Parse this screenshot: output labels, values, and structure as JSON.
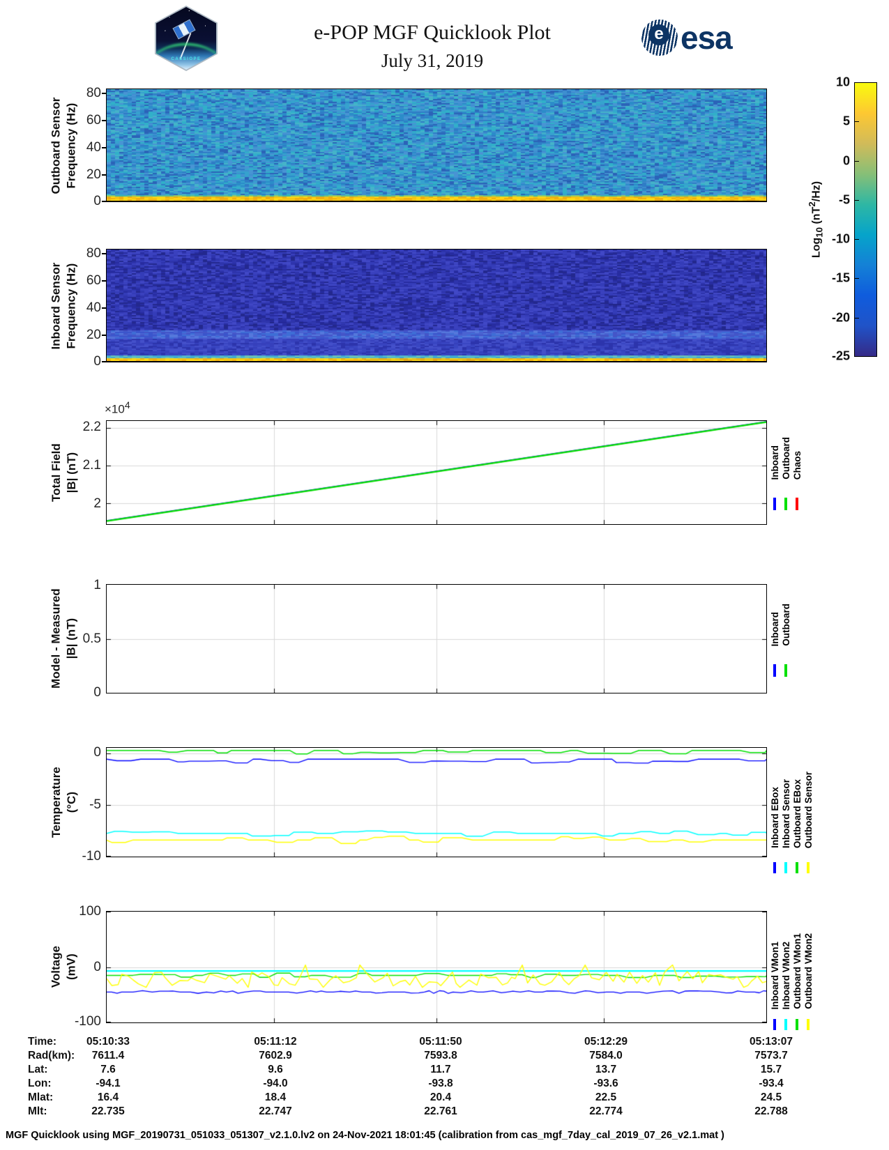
{
  "header": {
    "title": "e-POP MGF Quicklook Plot",
    "date": "July 31, 2019",
    "esa_wordmark": "esa",
    "cassiope_patch_text": "CASSIOPE"
  },
  "colorbar": {
    "ticks": [
      "10",
      "5",
      "0",
      "-5",
      "-10",
      "-15",
      "-20",
      "-25"
    ],
    "label_base": "Log",
    "label_sub": "10",
    "label_mid": " (nT",
    "label_sup": "2",
    "label_end": "/Hz)",
    "stops": [
      "#352a87",
      "#2053c8",
      "#0f5cdd",
      "#1481d6",
      "#06a4ca",
      "#2eb7a4",
      "#87bf77",
      "#d1bb59",
      "#fdc832",
      "#f9fb0e"
    ]
  },
  "panels": [
    {
      "name": "outboard-spectrogram",
      "ylabel1": "Outboard Sensor",
      "ylabel2": "Frequency (Hz)",
      "yticks": [
        "80",
        "60",
        "40",
        "20",
        "0"
      ]
    },
    {
      "name": "inboard-spectrogram",
      "ylabel1": "Inboard Sensor",
      "ylabel2": "Frequency (Hz)",
      "yticks": [
        "80",
        "60",
        "40",
        "20",
        "0"
      ]
    },
    {
      "name": "total-field",
      "ylabel1": "Total Field",
      "ylabel2": "|B| (nT)",
      "yticks": [
        "2.2",
        "2.1",
        "2"
      ],
      "exp_base": "×10",
      "exp_sup": "4",
      "legend": [
        {
          "label": "Inboard",
          "color": "#0000FF"
        },
        {
          "label": "Outboard",
          "color": "#00E000"
        },
        {
          "label": "Chaos",
          "color": "#FF0000"
        }
      ]
    },
    {
      "name": "model-measured",
      "ylabel1": "Model - Measured",
      "ylabel2": "|B| (nT)",
      "yticks": [
        "1",
        "0.5",
        "0"
      ],
      "legend": [
        {
          "label": "Inboard",
          "color": "#0000FF"
        },
        {
          "label": "Outboard",
          "color": "#00E000"
        }
      ]
    },
    {
      "name": "temperature",
      "ylabel1": "Temperature",
      "ylabel2": "(°C)",
      "yticks": [
        "0",
        "-5",
        "-10"
      ],
      "legend": [
        {
          "label": "Inboard EBox",
          "color": "#0000FF"
        },
        {
          "label": "Inboard Sensor",
          "color": "#00FFFF"
        },
        {
          "label": "Outboard EBox",
          "color": "#00E000"
        },
        {
          "label": "Outboard Sensor",
          "color": "#FFFF00"
        }
      ]
    },
    {
      "name": "voltage",
      "ylabel1": "Voltage",
      "ylabel2": "(mV)",
      "yticks": [
        "100",
        "0",
        "-100"
      ],
      "legend": [
        {
          "label": "Inboard VMon1",
          "color": "#0000FF"
        },
        {
          "label": "Inboard VMon2",
          "color": "#00FFFF"
        },
        {
          "label": "Outboard VMon1",
          "color": "#00E000"
        },
        {
          "label": "Outboard VMon2",
          "color": "#FFFF00"
        }
      ]
    }
  ],
  "xaxis": {
    "labels": [
      "05:10:33",
      "05:11:12",
      "05:11:50",
      "05:12:29",
      "05:13:07"
    ],
    "fractions": [
      0,
      0.2532,
      0.5,
      0.7532,
      1
    ]
  },
  "table": {
    "rows": [
      {
        "label": "Time:",
        "values": [
          "05:10:33",
          "05:11:12",
          "05:11:50",
          "05:12:29",
          "05:13:07"
        ]
      },
      {
        "label": "Rad(km):",
        "values": [
          "7611.4",
          "7602.9",
          "7593.8",
          "7584.0",
          "7573.7"
        ]
      },
      {
        "label": "Lat:",
        "values": [
          "7.6",
          "9.6",
          "11.7",
          "13.7",
          "15.7"
        ]
      },
      {
        "label": "Lon:",
        "values": [
          "-94.1",
          "-94.0",
          "-93.8",
          "-93.6",
          "-93.4"
        ]
      },
      {
        "label": "Mlat:",
        "values": [
          "16.4",
          "18.4",
          "20.4",
          "22.5",
          "24.5"
        ]
      },
      {
        "label": "Mlt:",
        "values": [
          "22.735",
          "22.747",
          "22.761",
          "22.774",
          "22.788"
        ]
      }
    ]
  },
  "footer": "MGF Quicklook using MGF_20190731_051033_051307_v2.1.0.lv2 on 24-Nov-2021 18:01:45 (calibration from cas_mgf_7day_cal_2019_07_26_v2.1.mat )",
  "chart_data": [
    {
      "type": "heatmap",
      "panel": "outboard-spectrogram",
      "title": "Outboard Sensor spectrogram",
      "ylabel": "Frequency (Hz)",
      "ylim": [
        0,
        83.5
      ],
      "yticks": [
        0,
        20,
        40,
        60,
        80
      ],
      "x_time_range": [
        "05:10:33",
        "05:13:07"
      ],
      "value_units": "Log10 (nT^2/Hz)",
      "summary": {
        "background_psd_log10": [
          -6,
          -2
        ],
        "low_freq_band_hz": [
          0,
          2
        ],
        "low_freq_band_psd_log10": 8
      },
      "streak": "rgba(10,40,110,0.14)",
      "bands": [
        {
          "until": 0.952,
          "colors": [
            "#3E8FD0",
            "#2F7CC6",
            "#36A2CE",
            "#2B8CC9",
            "#4894D4",
            "#31B0C9",
            "#2B63B8",
            "#45B3C9"
          ]
        },
        {
          "until": 0.966,
          "colors": [
            "#8FCB6A",
            "#5FBD8F",
            "#3EB7A6"
          ]
        },
        {
          "until": 1.0,
          "colors": [
            "#F5C313",
            "#EFAD10",
            "#FFD714"
          ]
        }
      ]
    },
    {
      "type": "heatmap",
      "panel": "inboard-spectrogram",
      "title": "Inboard Sensor spectrogram",
      "ylabel": "Frequency (Hz)",
      "ylim": [
        0,
        83.5
      ],
      "yticks": [
        0,
        20,
        40,
        60,
        80
      ],
      "x_time_range": [
        "05:10:33",
        "05:13:07"
      ],
      "value_units": "Log10 (nT^2/Hz)",
      "summary": {
        "background_psd_log10": [
          -20,
          -15
        ],
        "band_20hz_psd_log10": -13,
        "low_freq_band_hz": [
          0,
          2
        ],
        "low_freq_band_psd_log10": 8
      },
      "streak": "rgba(12,12,80,0.16)",
      "bands": [
        {
          "until": 0.72,
          "colors": [
            "#2E34AC",
            "#3A41BE",
            "#272CA0",
            "#343CB8",
            "#4148C6",
            "#23288E"
          ]
        },
        {
          "until": 0.8,
          "colors": [
            "#4A63D2",
            "#3E6ED6",
            "#5578DC",
            "#3A55CC",
            "#4455C8"
          ]
        },
        {
          "until": 0.955,
          "colors": [
            "#3640BC",
            "#2C34AC",
            "#4450CA",
            "#3946C2"
          ]
        },
        {
          "until": 0.972,
          "colors": [
            "#3FA8D0",
            "#57BAC8",
            "#6FC4B2"
          ]
        },
        {
          "until": 1.0,
          "colors": [
            "#F5C313",
            "#FFD714",
            "#EFAD10"
          ]
        }
      ]
    },
    {
      "type": "line",
      "panel": "total-field",
      "title": "Total Field |B| (nT)",
      "ylim": [
        19450,
        22180
      ],
      "yticks": [
        20000,
        21000,
        22000
      ],
      "exponent": "x10^4",
      "xgrid": [
        0.2532,
        0.5,
        0.7532
      ],
      "series": [
        {
          "name": "Inboard",
          "color": "#0000FF",
          "style": "linear",
          "start": 19542,
          "end": 22162,
          "width": 1.4
        },
        {
          "name": "Chaos",
          "color": "#FF0000",
          "style": "linear",
          "start": 19530,
          "end": 22150,
          "width": 1.4
        },
        {
          "name": "Outboard",
          "color": "#00E000",
          "style": "linear",
          "start": 19530,
          "end": 22150,
          "width": 2.4
        }
      ]
    },
    {
      "type": "line",
      "panel": "model-measured",
      "title": "Model - Measured |B| (nT)",
      "ylim": [
        0,
        1
      ],
      "yticks": [
        0.5
      ],
      "xgrid": [
        0.2532,
        0.5,
        0.7532
      ],
      "note": "no data lines visible in this panel",
      "series": []
    },
    {
      "type": "line",
      "panel": "temperature",
      "title": "Temperature (degC)",
      "ylim": [
        -10,
        0.55
      ],
      "yticks": [
        0,
        -5,
        -10
      ],
      "xgrid": [
        0.2532,
        0.5,
        0.7532
      ],
      "series": [
        {
          "name": "Inboard EBox",
          "color": "#0000FF",
          "style": "wiggle",
          "mean": -0.55,
          "amp": 0.4,
          "bias": -1,
          "width": 1.3
        },
        {
          "name": "Inboard Sensor",
          "color": "#00FFFF",
          "style": "wiggle",
          "mean": -7.75,
          "amp": 0.35,
          "bias": 0,
          "width": 1.5
        },
        {
          "name": "Outboard EBox",
          "color": "#00E000",
          "style": "wiggle",
          "mean": 0.3,
          "amp": 0.35,
          "bias": -1,
          "width": 1.5
        },
        {
          "name": "Outboard Sensor",
          "color": "#FFFF00",
          "style": "wiggle",
          "mean": -8.4,
          "amp": 0.4,
          "bias": 0,
          "width": 1.5
        }
      ]
    },
    {
      "type": "line",
      "panel": "voltage",
      "title": "Voltage (mV)",
      "ylim": [
        -100,
        100
      ],
      "yticks": [
        100,
        0,
        -100
      ],
      "xgrid": [
        0.2532,
        0.5,
        0.7532
      ],
      "series": [
        {
          "name": "Inboard VMon1",
          "color": "#0000FF",
          "style": "zigzag",
          "mean": -45,
          "amp": 2.5,
          "width": 1.3
        },
        {
          "name": "Inboard VMon2",
          "color": "#00FFFF",
          "style": "flat",
          "mean": -7,
          "width": 2.2
        },
        {
          "name": "Outboard VMon1",
          "color": "#00E000",
          "style": "wiggle",
          "mean": -15,
          "amp": 4,
          "bias": 0,
          "width": 1.4
        },
        {
          "name": "Outboard VMon2",
          "color": "#FFFF00",
          "style": "noisy",
          "mean": -21,
          "amp": 13,
          "width": 1.4
        }
      ]
    }
  ]
}
